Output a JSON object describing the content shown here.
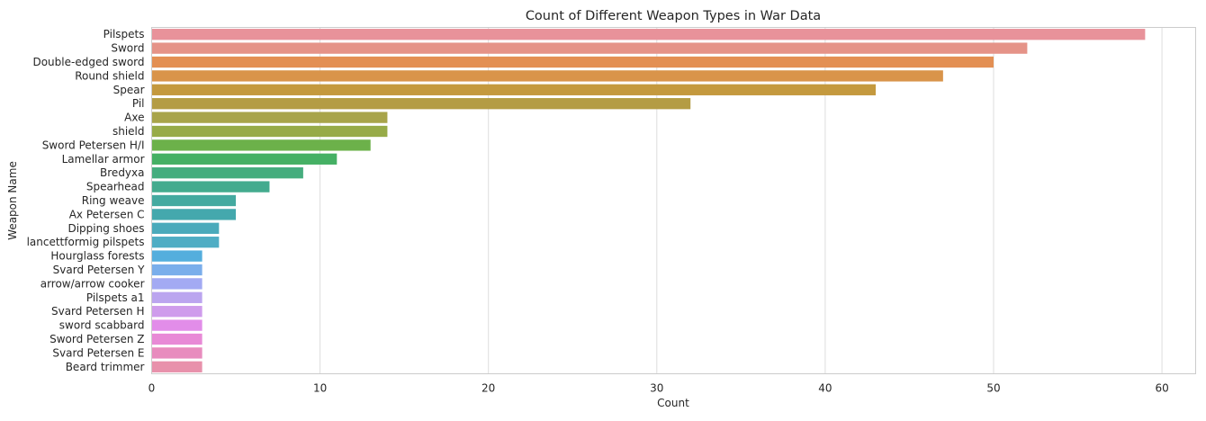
{
  "chart_data": {
    "type": "bar",
    "orientation": "horizontal",
    "title": "Count of Different Weapon Types in War Data",
    "xlabel": "Count",
    "ylabel": "Weapon Name",
    "xlim": [
      0,
      62
    ],
    "xticks": [
      0,
      10,
      20,
      30,
      40,
      50,
      60
    ],
    "grid": true,
    "categories": [
      "Pilspets",
      "Sword",
      "Double-edged sword",
      "Round shield",
      "Spear",
      "Pil",
      "Axe",
      "shield",
      "Sword Petersen H/I",
      "Lamellar armor",
      "Bredyxa",
      "Spearhead",
      "Ring weave",
      "Ax Petersen C",
      "Dipping shoes",
      "lancettformig pilspets",
      "Hourglass forests",
      "Svard Petersen Y",
      "arrow/arrow cooker",
      "Pilspets a1",
      "Svard Petersen H",
      "sword scabbard",
      "Sword Petersen Z",
      "Svard Petersen E",
      "Beard trimmer"
    ],
    "values": [
      59,
      52,
      50,
      47,
      43,
      32,
      14,
      14,
      13,
      11,
      9,
      7,
      5,
      5,
      4,
      4,
      3,
      3,
      3,
      3,
      3,
      3,
      3,
      3,
      3
    ],
    "colors": [
      "#e8929a",
      "#e59388",
      "#e38f53",
      "#d9944a",
      "#c4993e",
      "#b49c44",
      "#a8a44a",
      "#97ab48",
      "#6cb14a",
      "#45b064",
      "#45ad7e",
      "#44ab8e",
      "#44aaa0",
      "#44a8ad",
      "#4aaabb",
      "#4fadc4",
      "#54aedd",
      "#7aaeeb",
      "#a3aaf3",
      "#bba5ef",
      "#cf9cec",
      "#e28de9",
      "#e88ad6",
      "#e88cbe",
      "#e891ab"
    ]
  }
}
